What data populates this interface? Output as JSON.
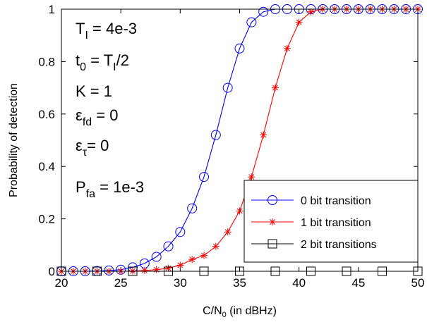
{
  "chart_data": {
    "type": "line",
    "xlabel": "C/N",
    "xlabel_sub": "0",
    "xlabel_suffix": " (in dBHz)",
    "ylabel": "Probability of detection",
    "xlim": [
      20,
      50
    ],
    "ylim": [
      0,
      1
    ],
    "xticks": [
      20,
      25,
      30,
      35,
      40,
      45,
      50
    ],
    "yticks": [
      0,
      0.2,
      0.4,
      0.6,
      0.8,
      1
    ],
    "ytick_labels": [
      "0",
      "0.2",
      "0.4",
      "0.6",
      "0.8",
      "1"
    ],
    "grid": false,
    "legend_position": "lower-right",
    "x": [
      20,
      21,
      22,
      23,
      24,
      25,
      26,
      27,
      28,
      29,
      30,
      31,
      32,
      33,
      34,
      35,
      36,
      37,
      38,
      39,
      40,
      41,
      42,
      43,
      44,
      45,
      46,
      47,
      48,
      49,
      50
    ],
    "series": [
      {
        "name": "0 bit transition",
        "color": "#0000ff",
        "marker": "circle",
        "values": [
          0.0,
          0.0,
          0.0,
          0.001,
          0.003,
          0.006,
          0.015,
          0.03,
          0.055,
          0.095,
          0.15,
          0.24,
          0.36,
          0.52,
          0.7,
          0.85,
          0.95,
          0.99,
          1,
          1,
          1,
          1,
          1,
          1,
          1,
          1,
          1,
          1,
          1,
          1,
          1
        ]
      },
      {
        "name": "1 bit transition",
        "color": "#ff0000",
        "marker": "star",
        "values": [
          0.0,
          0.0,
          0.0,
          0.0,
          0.0,
          0.0,
          0.001,
          0.003,
          0.006,
          0.012,
          0.023,
          0.045,
          0.06,
          0.095,
          0.15,
          0.23,
          0.36,
          0.52,
          0.7,
          0.85,
          0.95,
          0.99,
          1,
          1,
          1,
          1,
          1,
          1,
          1,
          1,
          1
        ]
      },
      {
        "name": "2 bit transitions",
        "color": "#000000",
        "marker": "square",
        "values": [
          0,
          0,
          0,
          0,
          0,
          0,
          0,
          0,
          0,
          0,
          0,
          0,
          0,
          0,
          0,
          0,
          0,
          0,
          0,
          0,
          0,
          0,
          0,
          0,
          0,
          0,
          0,
          0,
          0,
          0,
          0
        ],
        "marker_x": [
          20,
          23,
          26,
          29,
          32,
          35,
          38,
          41,
          44,
          47,
          50
        ]
      }
    ],
    "annotations": [
      {
        "main": "T",
        "sub": "I",
        "rest": " = 4e-3"
      },
      {
        "main": "t",
        "sub": "0",
        "rest": " = T",
        "sub2": "I",
        "rest2": "/2"
      },
      {
        "main": "K = 1"
      },
      {
        "main": "ε",
        "sub": "fd",
        "rest": " = 0"
      },
      {
        "main": "ε",
        "sub": "τ",
        "rest": "= 0"
      },
      {
        "main": "P",
        "sub": "fa",
        "rest": " = 1e-3"
      }
    ]
  }
}
